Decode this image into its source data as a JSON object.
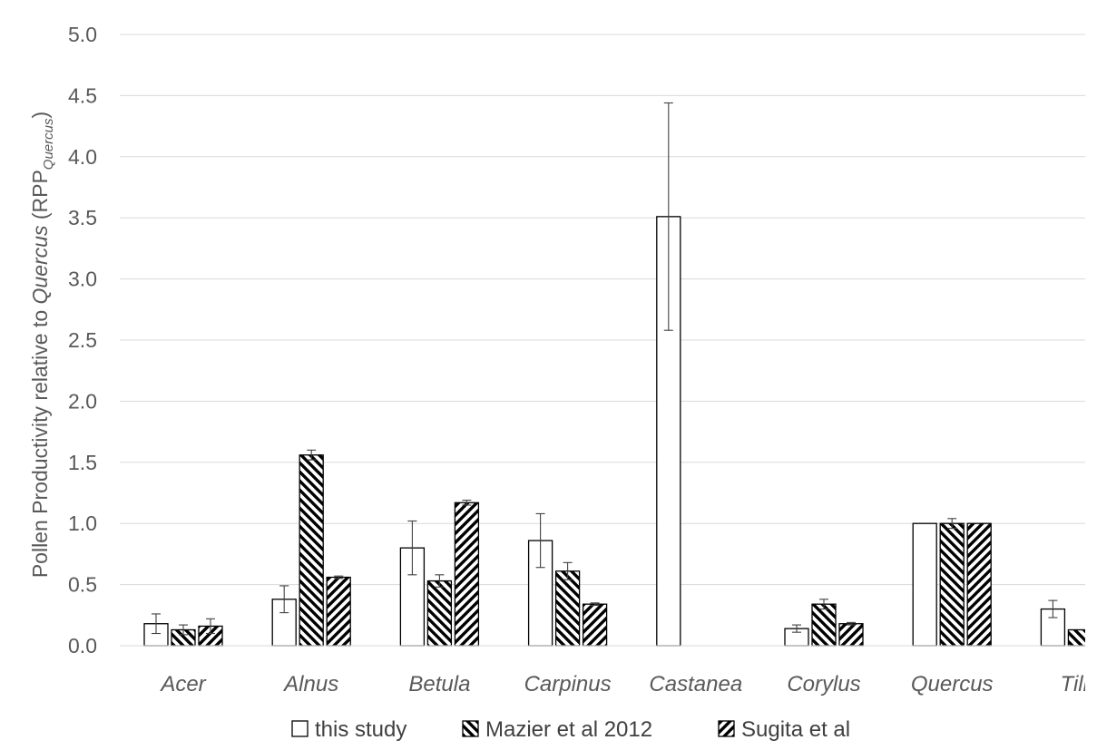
{
  "chart_data": {
    "type": "bar",
    "ylabel": {
      "prefix": "Pollen Productivity relative to ",
      "italic": "Quercus",
      "paren_open": " (RPP",
      "subscript": "Quercus",
      "paren_close": ")"
    },
    "ylim": [
      0,
      5.0
    ],
    "yticks": [
      "0.0",
      "0.5",
      "1.0",
      "1.5",
      "2.0",
      "2.5",
      "3.0",
      "3.5",
      "4.0",
      "4.5",
      "5.0"
    ],
    "grid": true,
    "legend_position": "bottom",
    "categories": [
      "Acer",
      "Alnus",
      "Betula",
      "Carpinus",
      "Castanea",
      "Corylus",
      "Quercus",
      "Tilia"
    ],
    "series": [
      {
        "name": "this study",
        "pattern": "open",
        "values": [
          0.18,
          0.38,
          0.8,
          0.86,
          3.51,
          0.14,
          1.0,
          0.3
        ],
        "errors": [
          0.08,
          0.11,
          0.22,
          0.22,
          0.93,
          0.03,
          0,
          0.07
        ]
      },
      {
        "name": "Mazier et al 2012",
        "pattern": "back-diagonal",
        "values": [
          0.13,
          1.56,
          0.53,
          0.61,
          null,
          0.34,
          1.0,
          0.13
        ],
        "errors": [
          0.04,
          0.04,
          0.05,
          0.07,
          null,
          0.04,
          0.04,
          0
        ]
      },
      {
        "name": "Sugita et al",
        "pattern": "forward-diagonal",
        "values": [
          0.16,
          0.56,
          1.17,
          0.34,
          null,
          0.18,
          1.0,
          null
        ],
        "errors": [
          0.06,
          0.01,
          0.02,
          0.01,
          null,
          0.01,
          0,
          null
        ]
      }
    ]
  }
}
